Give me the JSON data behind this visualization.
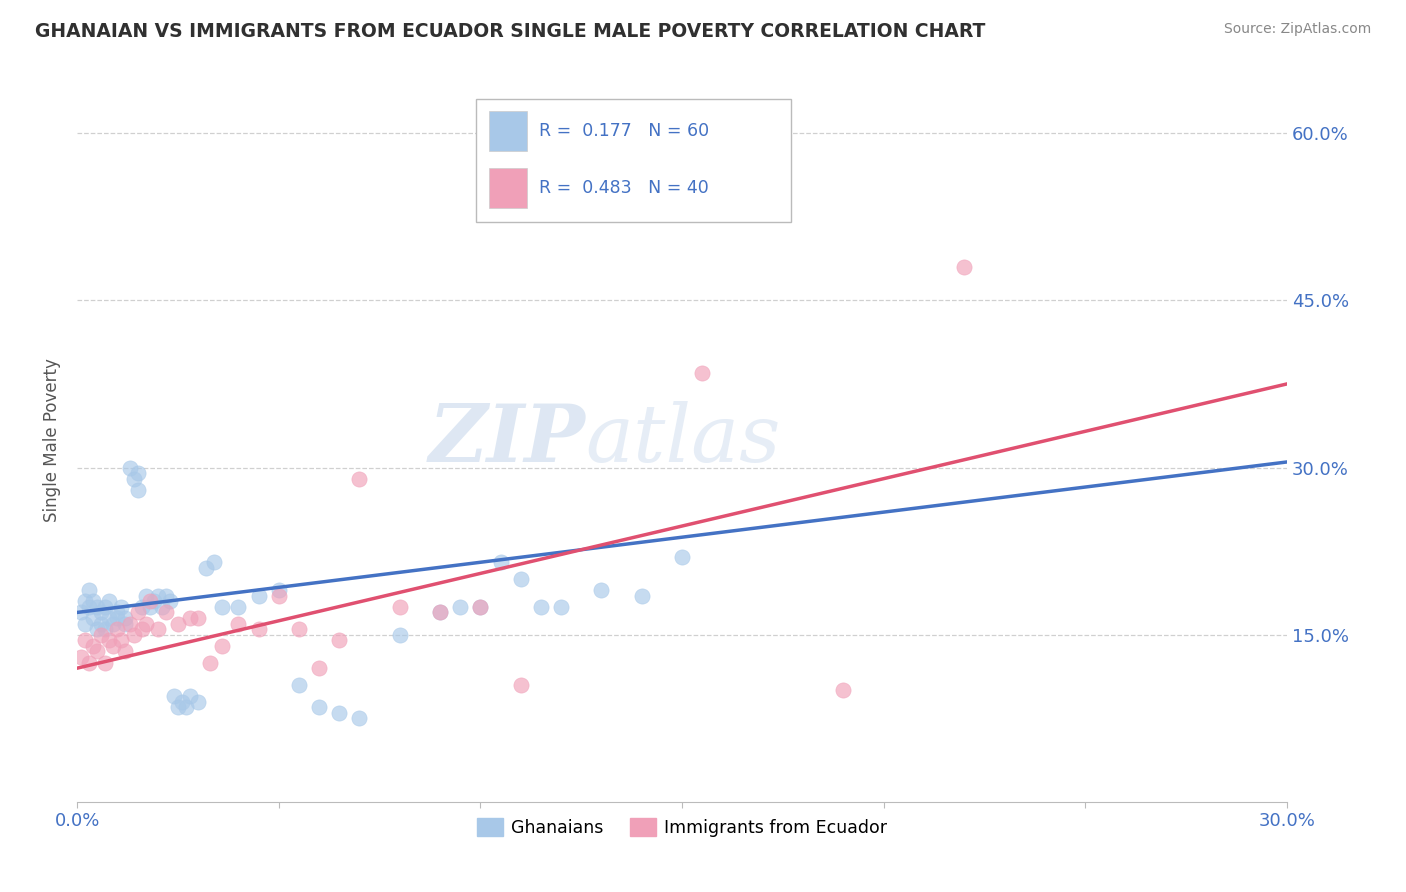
{
  "title": "GHANAIAN VS IMMIGRANTS FROM ECUADOR SINGLE MALE POVERTY CORRELATION CHART",
  "source": "Source: ZipAtlas.com",
  "ylabel": "Single Male Poverty",
  "xlim": [
    0.0,
    0.3
  ],
  "ylim": [
    0.0,
    0.65
  ],
  "xtick_vals": [
    0.0,
    0.05,
    0.1,
    0.15,
    0.2,
    0.25,
    0.3
  ],
  "xtick_show_labels": [
    true,
    false,
    false,
    false,
    false,
    false,
    true
  ],
  "ytick_vals_right": [
    0.15,
    0.3,
    0.45,
    0.6
  ],
  "ytick_labels_right": [
    "15.0%",
    "30.0%",
    "45.0%",
    "60.0%"
  ],
  "legend_r1_text": "R =  0.177   N = 60",
  "legend_r2_text": "R =  0.483   N = 40",
  "color_ghanaian": "#A8C8E8",
  "color_ecuador": "#F0A0B8",
  "color_line_ghanaian": "#4472C4",
  "color_line_ecuador": "#E05070",
  "color_axis_blue": "#4472C4",
  "color_grid": "#D0D0D0",
  "watermark_text": "ZIPatlas",
  "gh_x": [
    0.001,
    0.002,
    0.002,
    0.003,
    0.003,
    0.004,
    0.004,
    0.005,
    0.005,
    0.006,
    0.006,
    0.007,
    0.007,
    0.008,
    0.008,
    0.009,
    0.01,
    0.01,
    0.011,
    0.012,
    0.012,
    0.013,
    0.014,
    0.015,
    0.015,
    0.016,
    0.017,
    0.018,
    0.019,
    0.02,
    0.021,
    0.022,
    0.023,
    0.024,
    0.025,
    0.026,
    0.027,
    0.028,
    0.03,
    0.032,
    0.034,
    0.036,
    0.04,
    0.045,
    0.05,
    0.055,
    0.06,
    0.065,
    0.07,
    0.08,
    0.09,
    0.095,
    0.1,
    0.105,
    0.11,
    0.115,
    0.12,
    0.13,
    0.14,
    0.15
  ],
  "gh_y": [
    0.17,
    0.18,
    0.16,
    0.19,
    0.175,
    0.165,
    0.18,
    0.155,
    0.175,
    0.16,
    0.17,
    0.155,
    0.175,
    0.165,
    0.18,
    0.16,
    0.17,
    0.165,
    0.175,
    0.165,
    0.16,
    0.3,
    0.29,
    0.295,
    0.28,
    0.175,
    0.185,
    0.175,
    0.18,
    0.185,
    0.175,
    0.185,
    0.18,
    0.095,
    0.085,
    0.09,
    0.085,
    0.095,
    0.09,
    0.21,
    0.215,
    0.175,
    0.175,
    0.185,
    0.19,
    0.105,
    0.085,
    0.08,
    0.075,
    0.15,
    0.17,
    0.175,
    0.175,
    0.215,
    0.2,
    0.175,
    0.175,
    0.19,
    0.185,
    0.22
  ],
  "ec_x": [
    0.001,
    0.002,
    0.003,
    0.004,
    0.005,
    0.006,
    0.007,
    0.008,
    0.009,
    0.01,
    0.011,
    0.012,
    0.013,
    0.014,
    0.015,
    0.016,
    0.017,
    0.018,
    0.02,
    0.022,
    0.025,
    0.028,
    0.03,
    0.033,
    0.036,
    0.04,
    0.045,
    0.05,
    0.055,
    0.06,
    0.065,
    0.07,
    0.08,
    0.09,
    0.1,
    0.11,
    0.13,
    0.155,
    0.19,
    0.22
  ],
  "ec_y": [
    0.13,
    0.145,
    0.125,
    0.14,
    0.135,
    0.15,
    0.125,
    0.145,
    0.14,
    0.155,
    0.145,
    0.135,
    0.16,
    0.15,
    0.17,
    0.155,
    0.16,
    0.18,
    0.155,
    0.17,
    0.16,
    0.165,
    0.165,
    0.125,
    0.14,
    0.16,
    0.155,
    0.185,
    0.155,
    0.12,
    0.145,
    0.29,
    0.175,
    0.17,
    0.175,
    0.105,
    0.54,
    0.385,
    0.1,
    0.48
  ],
  "gh_trend_x": [
    0.0,
    0.3
  ],
  "gh_trend_y": [
    0.17,
    0.305
  ],
  "ec_trend_x": [
    0.0,
    0.3
  ],
  "ec_trend_y": [
    0.12,
    0.375
  ]
}
